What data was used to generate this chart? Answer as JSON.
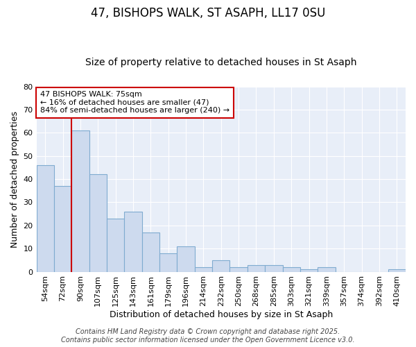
{
  "title1": "47, BISHOPS WALK, ST ASAPH, LL17 0SU",
  "title2": "Size of property relative to detached houses in St Asaph",
  "xlabel": "Distribution of detached houses by size in St Asaph",
  "ylabel": "Number of detached properties",
  "categories": [
    "54sqm",
    "72sqm",
    "90sqm",
    "107sqm",
    "125sqm",
    "143sqm",
    "161sqm",
    "179sqm",
    "196sqm",
    "214sqm",
    "232sqm",
    "250sqm",
    "268sqm",
    "285sqm",
    "303sqm",
    "321sqm",
    "339sqm",
    "357sqm",
    "374sqm",
    "392sqm",
    "410sqm"
  ],
  "values": [
    46,
    37,
    61,
    42,
    23,
    26,
    17,
    8,
    11,
    2,
    5,
    2,
    3,
    3,
    2,
    1,
    2,
    0,
    0,
    0,
    1
  ],
  "bar_color": "#cddaee",
  "bar_edge_color": "#7fabd0",
  "vline_x": 1.5,
  "vline_color": "#cc0000",
  "annotation_text": "47 BISHOPS WALK: 75sqm\n← 16% of detached houses are smaller (47)\n84% of semi-detached houses are larger (240) →",
  "annotation_box_color": "#ffffff",
  "annotation_box_edge": "#cc0000",
  "ylim": [
    0,
    80
  ],
  "yticks": [
    0,
    10,
    20,
    30,
    40,
    50,
    60,
    70,
    80
  ],
  "bg_color": "#e8eef8",
  "grid_color": "#ffffff",
  "fig_bg_color": "#ffffff",
  "footer": "Contains HM Land Registry data © Crown copyright and database right 2025.\nContains public sector information licensed under the Open Government Licence v3.0.",
  "title_fontsize": 12,
  "subtitle_fontsize": 10,
  "axis_label_fontsize": 9,
  "tick_fontsize": 8,
  "annotation_fontsize": 8,
  "footer_fontsize": 7
}
